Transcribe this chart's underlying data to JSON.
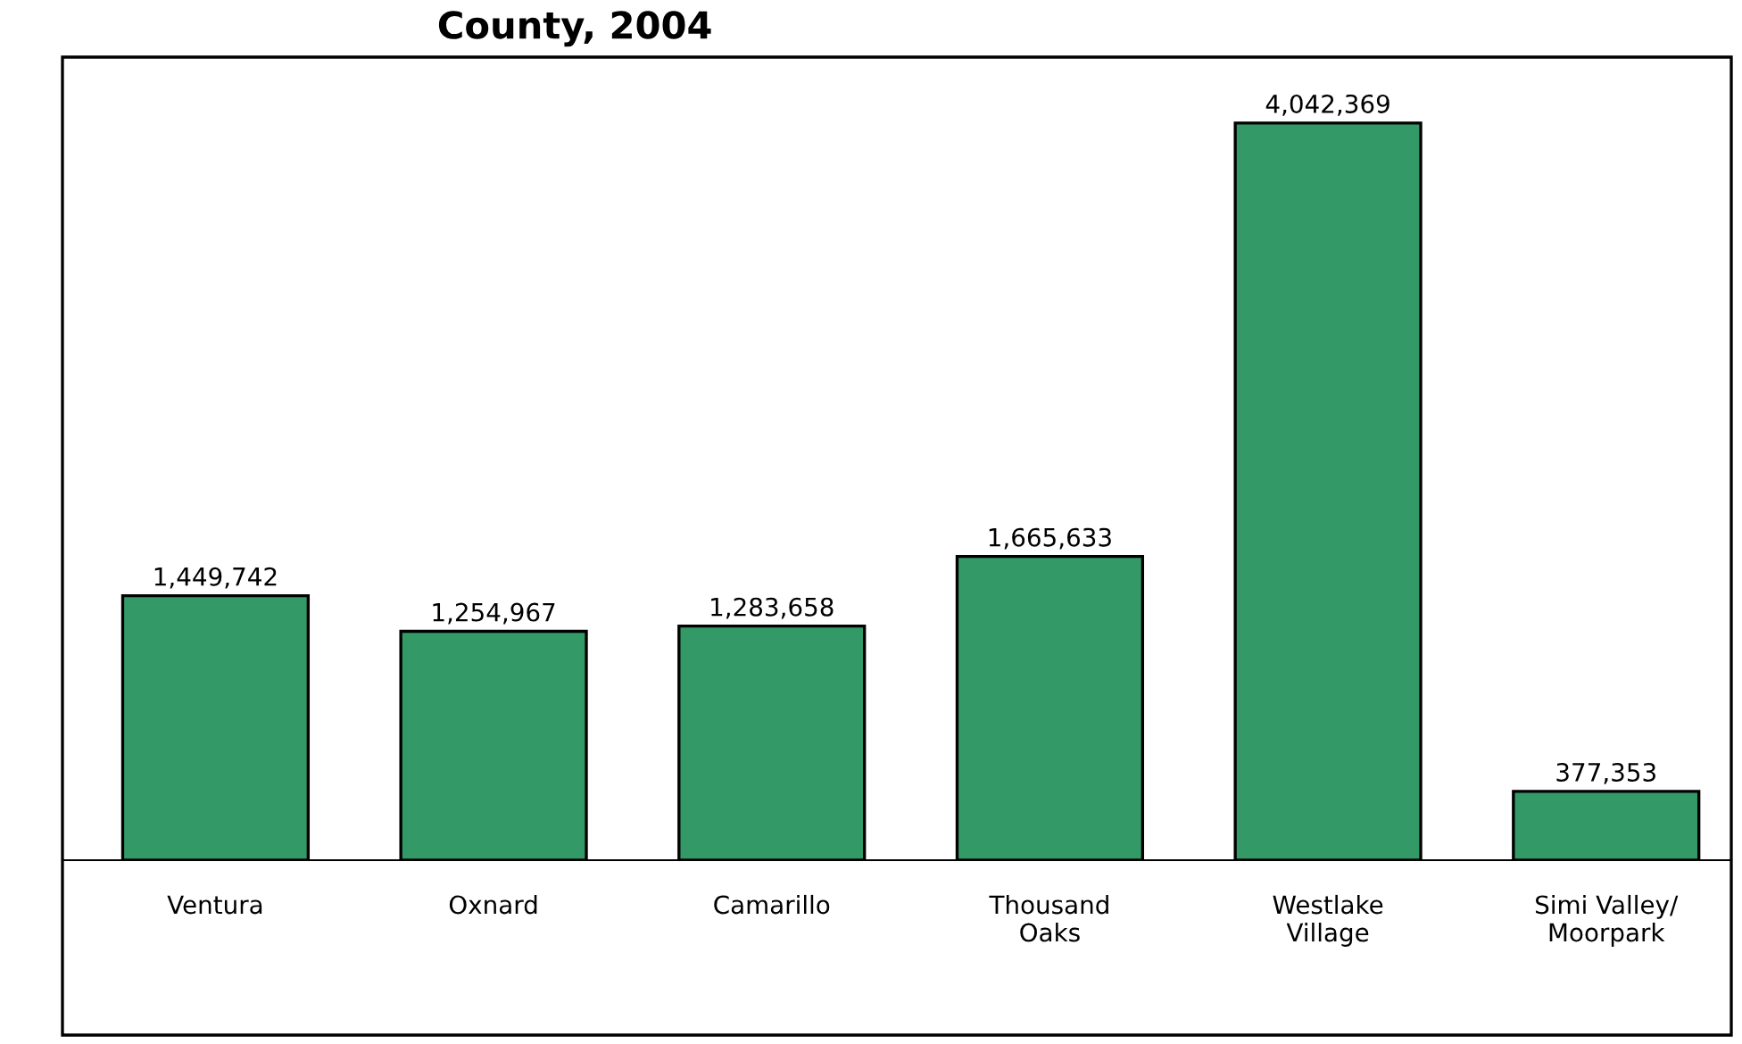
{
  "chart_data": {
    "type": "bar",
    "title": "County, 2004",
    "categories": [
      "Ventura",
      "Oxnard",
      "Camarillo",
      "Thousand\nOaks",
      "Westlake\nVillage",
      "Simi Valley/\nMoorpark"
    ],
    "values": [
      1449742,
      1254967,
      1283658,
      1665633,
      4042369,
      377353
    ],
    "value_labels": [
      "1,449,742",
      "1,254,967",
      "1,283,658",
      "1,665,633",
      "4,042,369",
      "377,353"
    ],
    "color": "#339966",
    "grid": false,
    "legend": false
  }
}
